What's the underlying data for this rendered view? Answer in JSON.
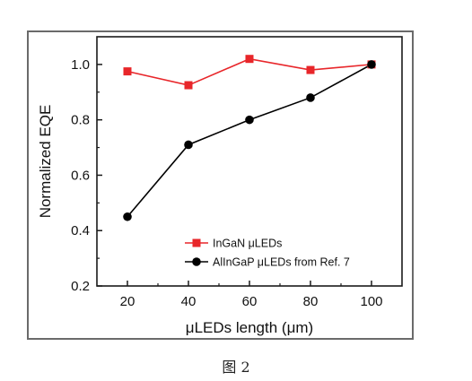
{
  "caption": "图 2",
  "chart_data": {
    "type": "line",
    "xlabel": "μLEDs length (μm)",
    "ylabel": "Normalized EQE",
    "x": [
      20,
      40,
      60,
      80,
      100
    ],
    "xlim": [
      10,
      110
    ],
    "ylim": [
      0.2,
      1.1
    ],
    "xticks": [
      "20",
      "40",
      "60",
      "80",
      "100"
    ],
    "yticks": [
      "0.2",
      "0.4",
      "0.6",
      "0.8",
      "1.0"
    ],
    "grid": false,
    "legend_position": "bottom-right",
    "series": [
      {
        "name": "InGaN μLEDs",
        "values": [
          0.975,
          0.925,
          1.02,
          0.98,
          1.0
        ],
        "color": "#e8262a",
        "marker": "square"
      },
      {
        "name": "AlInGaP μLEDs from Ref. 7",
        "values": [
          0.45,
          0.71,
          0.8,
          0.88,
          1.0
        ],
        "color": "#000000",
        "marker": "circle"
      }
    ]
  }
}
